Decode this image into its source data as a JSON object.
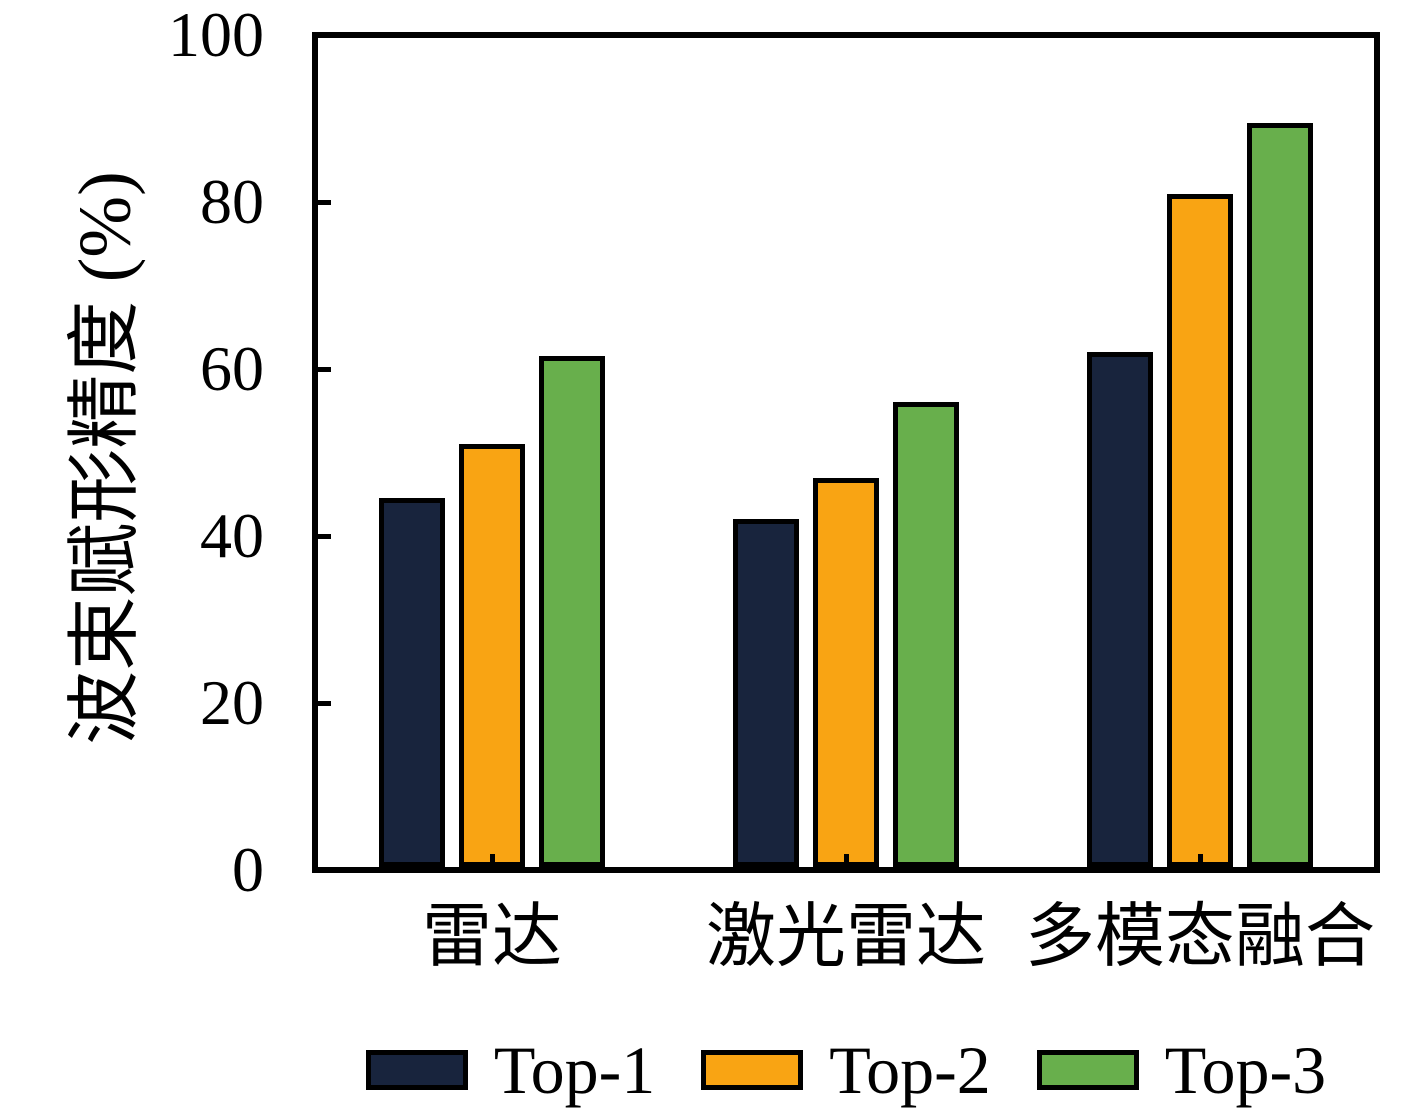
{
  "chart_data": {
    "type": "bar",
    "title": "",
    "ylabel": "波束赋形精度 (%)",
    "xlabel": "",
    "categories": [
      "雷达",
      "激光雷达",
      "多模态融合"
    ],
    "series": [
      {
        "name": "Top-1",
        "color": "#18243D",
        "values": [
          44.5,
          42,
          62
        ]
      },
      {
        "name": "Top-2",
        "color": "#F9A413",
        "values": [
          51,
          47,
          81
        ]
      },
      {
        "name": "Top-3",
        "color": "#68AF4C",
        "values": [
          61.5,
          56,
          89.5
        ]
      }
    ],
    "ylim": [
      0,
      100
    ],
    "yticks": [
      0,
      20,
      40,
      60,
      80,
      100
    ],
    "grid": false,
    "legend_position": "bottom",
    "bar_edge_color": "#000000",
    "frame_color": "#000000",
    "background": "#FFFFFF"
  }
}
